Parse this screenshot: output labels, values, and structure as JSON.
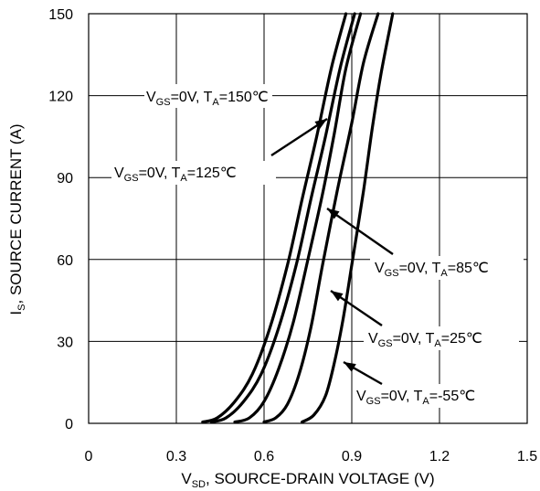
{
  "chart_data": {
    "type": "line",
    "xlabel": {
      "main": "V",
      "sub": "SD",
      "rest": ", SOURCE-DRAIN VOLTAGE (V)"
    },
    "ylabel": {
      "main": "I",
      "sub": "S",
      "rest": ", SOURCE CURRENT (A)"
    },
    "xlim": [
      0,
      1.5
    ],
    "ylim": [
      0,
      150
    ],
    "x_ticks": [
      "0",
      "0.3",
      "0.6",
      "0.9",
      "1.2",
      "1.5"
    ],
    "y_ticks": [
      "0",
      "30",
      "60",
      "90",
      "120",
      "150"
    ],
    "grid": true,
    "series": [
      {
        "name": "VGS=0V, TA=150℃",
        "label": {
          "v": "V",
          "vsub": "GS",
          "mid": "=0V, T",
          "tsub": "A",
          "temp": "=150℃"
        },
        "x": [
          0.39,
          0.44,
          0.5,
          0.56,
          0.62,
          0.68,
          0.73,
          0.78,
          0.83,
          0.88
        ],
        "y": [
          0.5,
          2,
          8,
          18,
          35,
          58,
          82,
          105,
          130,
          150
        ]
      },
      {
        "name": "VGS=0V, TA=125℃",
        "label": {
          "v": "V",
          "vsub": "GS",
          "mid": "=0V, T",
          "tsub": "A",
          "temp": "=125℃"
        },
        "x": [
          0.42,
          0.47,
          0.53,
          0.59,
          0.65,
          0.71,
          0.76,
          0.81,
          0.86,
          0.91
        ],
        "y": [
          0.5,
          2,
          8,
          18,
          35,
          58,
          82,
          105,
          130,
          150
        ]
      },
      {
        "name": "VGS=0V, TA=85℃",
        "label": {
          "v": "V",
          "vsub": "GS",
          "mid": "=0V, T",
          "tsub": "A",
          "temp": "=85℃"
        },
        "x": [
          0.5,
          0.55,
          0.6,
          0.65,
          0.7,
          0.75,
          0.8,
          0.84,
          0.88,
          0.93
        ],
        "y": [
          0.5,
          2,
          8,
          20,
          37,
          60,
          84,
          106,
          130,
          150
        ]
      },
      {
        "name": "VGS=0V, TA=25℃",
        "label": {
          "v": "V",
          "vsub": "GS",
          "mid": "=0V, T",
          "tsub": "A",
          "temp": "=25℃"
        },
        "x": [
          0.6,
          0.64,
          0.68,
          0.72,
          0.76,
          0.8,
          0.85,
          0.9,
          0.94,
          0.99
        ],
        "y": [
          0.5,
          2,
          7,
          18,
          35,
          58,
          85,
          110,
          132,
          150
        ]
      },
      {
        "name": "VGS=0V, TA=-55℃",
        "label": {
          "v": "V",
          "vsub": "GS",
          "mid": "=0V, T",
          "tsub": "A",
          "temp": "=-55℃"
        },
        "x": [
          0.73,
          0.77,
          0.81,
          0.84,
          0.87,
          0.9,
          0.94,
          0.97,
          1.0,
          1.04
        ],
        "y": [
          0.5,
          3,
          10,
          22,
          38,
          58,
          85,
          108,
          128,
          150
        ]
      }
    ]
  }
}
